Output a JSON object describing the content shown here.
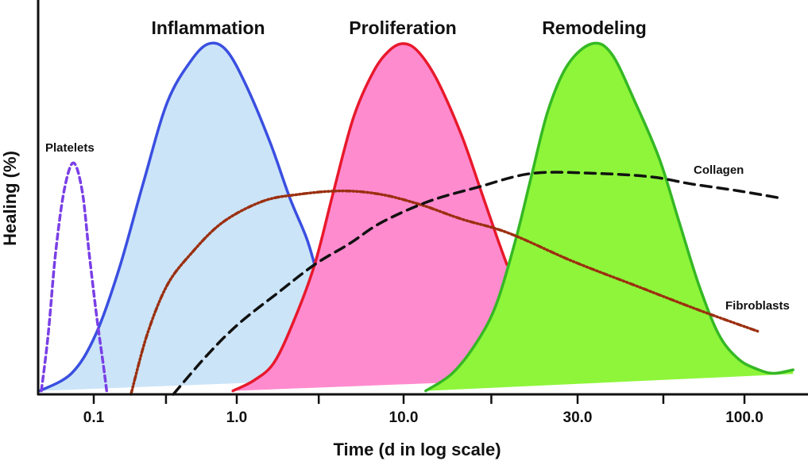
{
  "chart_data": {
    "type": "area",
    "title": "",
    "xlabel": "Time (d in log scale)",
    "ylabel": "Healing (%)",
    "x_scale": "log",
    "x_ticks": [
      {
        "value": 0.1,
        "label": "0.1"
      },
      {
        "value": 1.0,
        "label": "1.0"
      },
      {
        "value": 10.0,
        "label": "10.0"
      },
      {
        "value": 30.0,
        "label": "30.0"
      },
      {
        "value": 100.0,
        "label": "100.0"
      }
    ],
    "x_minor_ticks": [
      0.32,
      3.1,
      17.4,
      55.7
    ],
    "ylim": [
      0,
      100
    ],
    "grid": false,
    "series": [
      {
        "name": "Inflammation",
        "style": "filled",
        "line_color": "#3a4fe0",
        "fill_color": "#cbe4f8",
        "points": [
          [
            0.042,
            1
          ],
          [
            0.07,
            6
          ],
          [
            0.103,
            17
          ],
          [
            0.151,
            36
          ],
          [
            0.221,
            60
          ],
          [
            0.325,
            83
          ],
          [
            0.476,
            95
          ],
          [
            0.64,
            100
          ],
          [
            0.85,
            98
          ],
          [
            1.14,
            88
          ],
          [
            1.58,
            72
          ],
          [
            2.08,
            56
          ],
          [
            2.6,
            45
          ],
          [
            2.93,
            37
          ]
        ]
      },
      {
        "name": "Proliferation",
        "style": "filled",
        "line_color": "#e8192c",
        "fill_color": "#ff8bcf",
        "points": [
          [
            0.94,
            1
          ],
          [
            1.27,
            4
          ],
          [
            1.67,
            9
          ],
          [
            2.2,
            21
          ],
          [
            2.93,
            37
          ],
          [
            3.81,
            58
          ],
          [
            5.01,
            79
          ],
          [
            6.59,
            92
          ],
          [
            8.2,
            98
          ],
          [
            9.9,
            100
          ],
          [
            10.9,
            98
          ],
          [
            12.3,
            90
          ],
          [
            14.4,
            74
          ],
          [
            16.3,
            58
          ],
          [
            18.0,
            45
          ],
          [
            19.2,
            37
          ]
        ]
      },
      {
        "name": "Remodeling",
        "style": "filled",
        "line_color": "#35b824",
        "fill_color": "#8ef53a",
        "points": [
          [
            11.5,
            1
          ],
          [
            13.6,
            6
          ],
          [
            15.9,
            15
          ],
          [
            18.0,
            26
          ],
          [
            20.4,
            45
          ],
          [
            22.5,
            63
          ],
          [
            24.9,
            81
          ],
          [
            28.2,
            94
          ],
          [
            33.3,
            100
          ],
          [
            38.4,
            97
          ],
          [
            45.6,
            83
          ],
          [
            54.2,
            67
          ],
          [
            62.5,
            49
          ],
          [
            72.1,
            31
          ],
          [
            83.2,
            17
          ],
          [
            96,
            10
          ],
          [
            111,
            7
          ],
          [
            124,
            6
          ],
          [
            142,
            7
          ]
        ]
      },
      {
        "name": "Platelets",
        "style": "dashed",
        "line_color": "#7a3fe6",
        "points": [
          [
            0.043,
            1
          ],
          [
            0.048,
            17
          ],
          [
            0.054,
            40
          ],
          [
            0.062,
            58
          ],
          [
            0.072,
            66
          ],
          [
            0.083,
            58
          ],
          [
            0.093,
            40
          ],
          [
            0.105,
            22
          ],
          [
            0.117,
            8
          ],
          [
            0.124,
            0
          ]
        ]
      },
      {
        "name": "Fibroblasts",
        "style": "dash-dot",
        "line_color": "#9b2f10",
        "points": [
          [
            0.182,
            0
          ],
          [
            0.236,
            17
          ],
          [
            0.325,
            31
          ],
          [
            0.476,
            40
          ],
          [
            0.794,
            49
          ],
          [
            1.42,
            55
          ],
          [
            2.33,
            57
          ],
          [
            4.25,
            58
          ],
          [
            7.36,
            57
          ],
          [
            11.2,
            54
          ],
          [
            14.4,
            50
          ],
          [
            19.4,
            46
          ],
          [
            29.0,
            38
          ],
          [
            45.6,
            31
          ],
          [
            72.1,
            24
          ],
          [
            110,
            18
          ]
        ]
      },
      {
        "name": "Collagen",
        "style": "dashed",
        "line_color": "#111111",
        "points": [
          [
            0.36,
            0
          ],
          [
            0.615,
            11
          ],
          [
            1.02,
            20
          ],
          [
            1.77,
            29
          ],
          [
            2.93,
            37
          ],
          [
            4.75,
            43
          ],
          [
            7.36,
            49
          ],
          [
            11.7,
            55
          ],
          [
            15.9,
            59
          ],
          [
            22.5,
            63
          ],
          [
            34.2,
            63
          ],
          [
            51.2,
            62
          ],
          [
            68.1,
            60
          ],
          [
            96,
            58
          ],
          [
            129,
            56
          ]
        ]
      }
    ]
  }
}
